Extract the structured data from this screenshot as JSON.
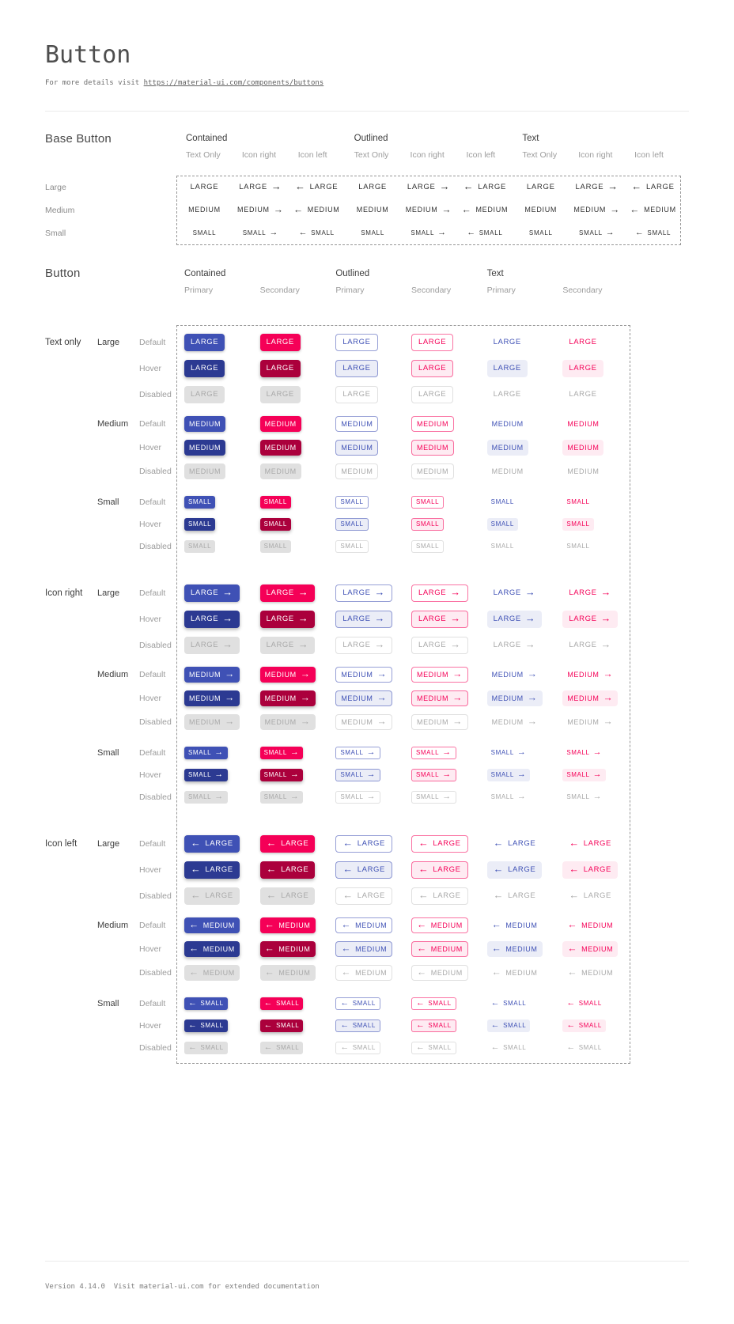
{
  "page": {
    "title": "Button",
    "subtitle_prefix": "For more details visit ",
    "subtitle_link": "https://material-ui.com/components/buttons",
    "footer": "Version 4.14.0  Visit material-ui.com for extended documentation"
  },
  "colors": {
    "primary": "#3f51b5",
    "primary-dark": "#2c3a92",
    "primary-tint": "rgba(63,81,181,0.10)",
    "primary-border": "rgba(63,81,181,0.55)",
    "secondary": "#f50057",
    "secondary-dark": "#ab003c",
    "secondary-tint": "rgba(245,0,87,0.08)",
    "secondary-border": "rgba(245,0,87,0.55)",
    "disabled-bg": "#e0e0e0",
    "disabled-text": "#a9a9a9",
    "disabled-border": "rgba(0,0,0,0.12)"
  },
  "icons": {
    "arrow_right": "→",
    "arrow_left": "←"
  },
  "base_section": {
    "title": "Base Button",
    "groups": [
      "Contained",
      "Outlined",
      "Text"
    ],
    "subcolumns": [
      "Text Only",
      "Icon right",
      "Icon left"
    ],
    "sizes": [
      {
        "label": "Large",
        "text": "LARGE"
      },
      {
        "label": "Medium",
        "text": "MEDIUM"
      },
      {
        "label": "Small",
        "text": "SMALL"
      }
    ]
  },
  "button_section": {
    "title": "Button",
    "groups": [
      "Contained",
      "Outlined",
      "Text"
    ],
    "subcolumns": [
      "Primary",
      "Secondary"
    ],
    "variants": [
      {
        "label": "Text only",
        "icon": "none"
      },
      {
        "label": "Icon right",
        "icon": "right"
      },
      {
        "label": "Icon left",
        "icon": "left"
      }
    ],
    "sizes": [
      {
        "label": "Large",
        "text": "LARGE"
      },
      {
        "label": "Medium",
        "text": "MEDIUM"
      },
      {
        "label": "Small",
        "text": "SMALL"
      }
    ],
    "states": [
      "Default",
      "Hover",
      "Disabled"
    ]
  }
}
